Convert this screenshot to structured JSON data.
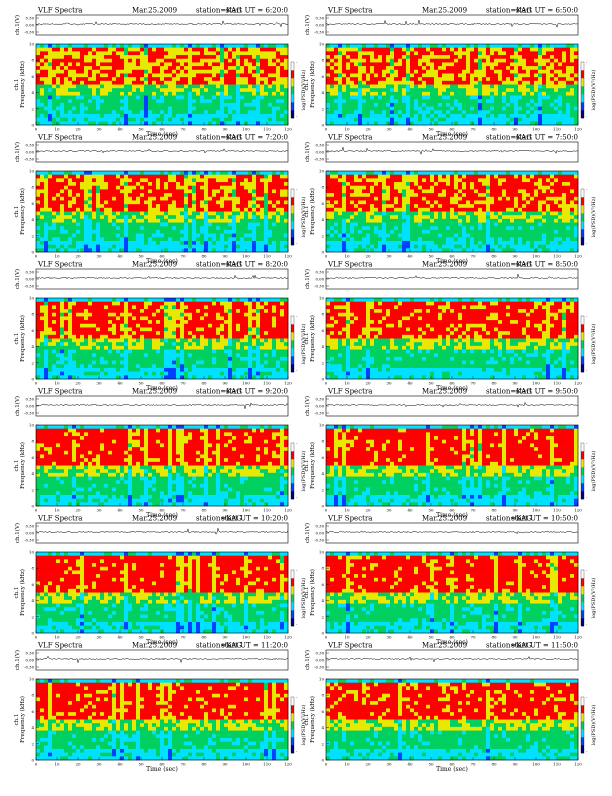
{
  "common": {
    "title_left": "VLF Spectra",
    "date": "Mar.25.2009",
    "station": "station=KAG",
    "start_prefix": "start  UT =",
    "wave_ylabel": "ch.1(V)",
    "wave_ticks": [
      "0.30",
      "0.00",
      "-0.30"
    ],
    "spec_ylabel": "Frequency (kHz)",
    "spec_ylabel_ch": "ch.1",
    "spec_yticks": [
      "0",
      "2",
      "4",
      "6",
      "8",
      "10"
    ],
    "xticks": [
      "0",
      "10",
      "20",
      "30",
      "40",
      "50",
      "60",
      "70",
      "80",
      "90",
      "100",
      "110",
      "120"
    ],
    "xlabel": "Time (sec)",
    "cbar_label": "log(PSD)(V²/Hz)",
    "cbar_tick_top": "-",
    "cbar_tick_bottom": "-"
  },
  "panels": [
    {
      "start": "6:20:0"
    },
    {
      "start": "6:50:0"
    },
    {
      "start": "7:20:0"
    },
    {
      "start": "7:50:0"
    },
    {
      "start": "8:20:0"
    },
    {
      "start": "8:50:0"
    },
    {
      "start": "9:20:0"
    },
    {
      "start": "9:50:0"
    },
    {
      "start": "10:20:0"
    },
    {
      "start": "10:50:0"
    },
    {
      "start": "11:20:0"
    },
    {
      "start": "11:50:0"
    }
  ],
  "chart_data": {
    "type": "heatmap",
    "title": "VLF Spectra",
    "xlabel": "Time (sec)",
    "ylabel": "Frequency (kHz)",
    "xlim": [
      0,
      120
    ],
    "ylim": [
      0,
      10
    ],
    "wave_ylim": [
      -0.3,
      0.3
    ],
    "colorbar_label": "log(PSD)(V²/Hz)",
    "colormap": [
      "#000080",
      "#0040ff",
      "#00e0ff",
      "#00d060",
      "#e8e800",
      "#ff0000",
      "#ffffff"
    ],
    "panels_layout": "6 rows x 2 columns",
    "grid": false
  }
}
